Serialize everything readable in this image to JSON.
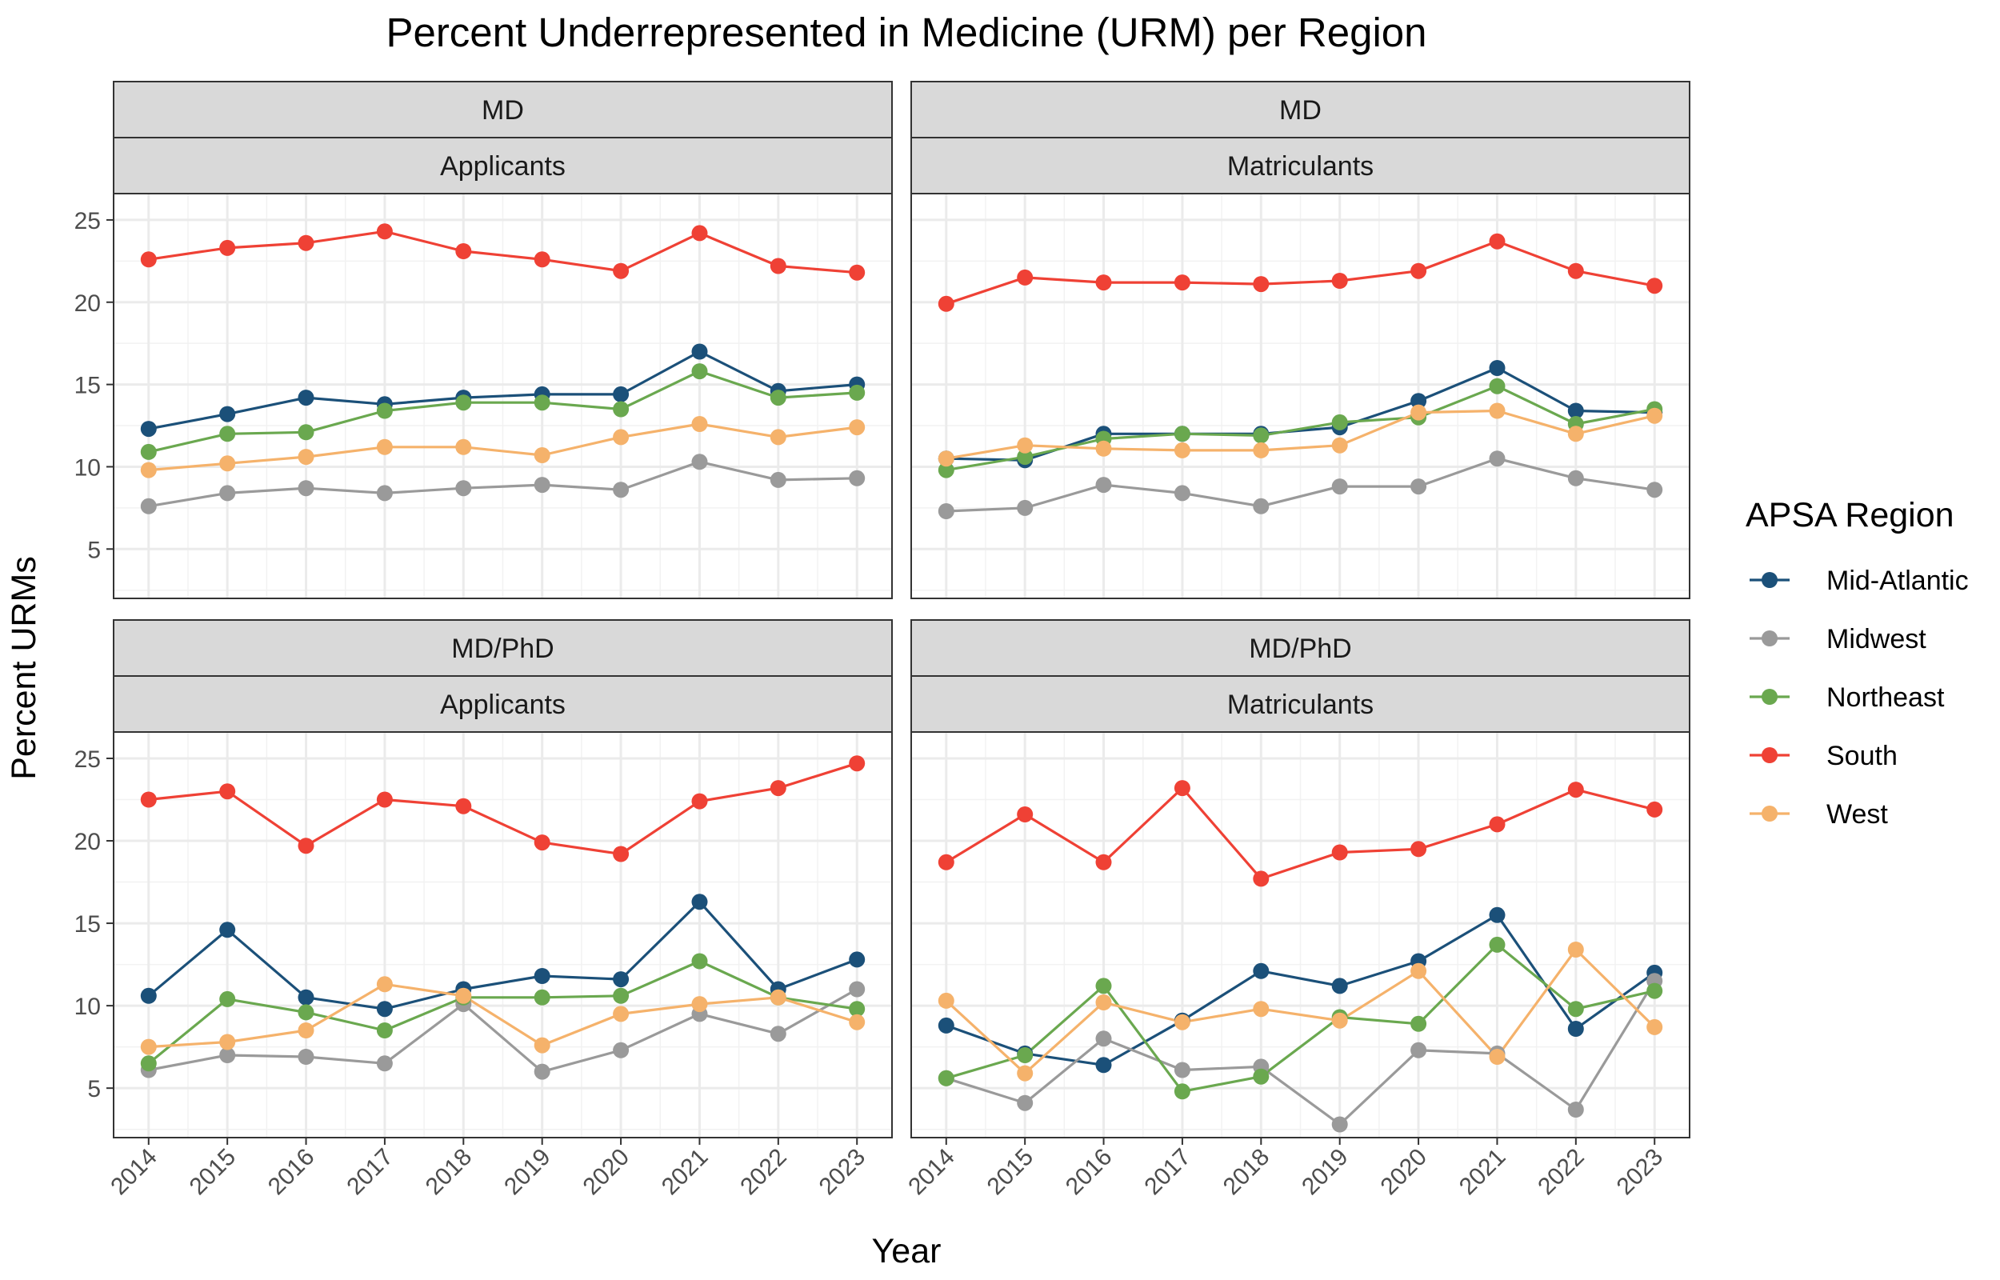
{
  "chart_data": {
    "type": "line",
    "title": "Percent Underrepresented in Medicine (URM) per Region",
    "xlabel": "Year",
    "ylabel": "Percent URMs",
    "x": [
      "2014",
      "2015",
      "2016",
      "2017",
      "2018",
      "2019",
      "2020",
      "2021",
      "2022",
      "2023"
    ],
    "ylim": [
      2.0,
      26.6
    ],
    "yticks": [
      "5",
      "10",
      "15",
      "20",
      "25"
    ],
    "grid": true,
    "legend": {
      "title": "APSA Region",
      "position": "right",
      "entries": [
        "Mid-Atlantic",
        "Midwest",
        "Northeast",
        "South",
        "West"
      ]
    },
    "colors": {
      "Mid-Atlantic": "#1b5079",
      "Midwest": "#9a9a9a",
      "Northeast": "#6aa84f",
      "South": "#ef4135",
      "West": "#f5b26b"
    },
    "panels": [
      {
        "strip_top": "MD",
        "strip_bottom": "Applicants",
        "series": [
          {
            "name": "Mid-Atlantic",
            "values": [
              12.3,
              13.2,
              14.2,
              13.8,
              14.2,
              14.4,
              14.4,
              17.0,
              14.6,
              15.0
            ]
          },
          {
            "name": "Midwest",
            "values": [
              7.6,
              8.4,
              8.7,
              8.4,
              8.7,
              8.9,
              8.6,
              10.3,
              9.2,
              9.3
            ]
          },
          {
            "name": "Northeast",
            "values": [
              10.9,
              12.0,
              12.1,
              13.4,
              13.9,
              13.9,
              13.5,
              15.8,
              14.2,
              14.5
            ]
          },
          {
            "name": "South",
            "values": [
              22.6,
              23.3,
              23.6,
              24.3,
              23.1,
              22.6,
              21.9,
              24.2,
              22.2,
              21.8
            ]
          },
          {
            "name": "West",
            "values": [
              9.8,
              10.2,
              10.6,
              11.2,
              11.2,
              10.7,
              11.8,
              12.6,
              11.8,
              12.4
            ]
          }
        ]
      },
      {
        "strip_top": "MD",
        "strip_bottom": "Matriculants",
        "series": [
          {
            "name": "Mid-Atlantic",
            "values": [
              10.5,
              10.4,
              12.0,
              12.0,
              12.0,
              12.4,
              14.0,
              16.0,
              13.4,
              13.3
            ]
          },
          {
            "name": "Midwest",
            "values": [
              7.3,
              7.5,
              8.9,
              8.4,
              7.6,
              8.8,
              8.8,
              10.5,
              9.3,
              8.6
            ]
          },
          {
            "name": "Northeast",
            "values": [
              9.8,
              10.6,
              11.7,
              12.0,
              11.9,
              12.7,
              13.0,
              14.9,
              12.6,
              13.5
            ]
          },
          {
            "name": "South",
            "values": [
              19.9,
              21.5,
              21.2,
              21.2,
              21.1,
              21.3,
              21.9,
              23.7,
              21.9,
              21.0
            ]
          },
          {
            "name": "West",
            "values": [
              10.5,
              11.3,
              11.1,
              11.0,
              11.0,
              11.3,
              13.3,
              13.4,
              12.0,
              13.1
            ]
          }
        ]
      },
      {
        "strip_top": "MD/PhD",
        "strip_bottom": "Applicants",
        "series": [
          {
            "name": "Mid-Atlantic",
            "values": [
              10.6,
              14.6,
              10.5,
              9.8,
              11.0,
              11.8,
              11.6,
              16.3,
              11.0,
              12.8
            ]
          },
          {
            "name": "Midwest",
            "values": [
              6.1,
              7.0,
              6.9,
              6.5,
              10.1,
              6.0,
              7.3,
              9.5,
              8.3,
              11.0
            ]
          },
          {
            "name": "Northeast",
            "values": [
              6.5,
              10.4,
              9.6,
              8.5,
              10.5,
              10.5,
              10.6,
              12.7,
              10.5,
              9.8
            ]
          },
          {
            "name": "South",
            "values": [
              22.5,
              23.0,
              19.7,
              22.5,
              22.1,
              19.9,
              19.2,
              22.4,
              23.2,
              24.7
            ]
          },
          {
            "name": "West",
            "values": [
              7.5,
              7.8,
              8.5,
              11.3,
              10.6,
              7.6,
              9.5,
              10.1,
              10.5,
              9.0
            ]
          }
        ]
      },
      {
        "strip_top": "MD/PhD",
        "strip_bottom": "Matriculants",
        "series": [
          {
            "name": "Mid-Atlantic",
            "values": [
              8.8,
              7.1,
              6.4,
              9.1,
              12.1,
              11.2,
              12.7,
              15.5,
              8.6,
              12.0
            ]
          },
          {
            "name": "Midwest",
            "values": [
              5.6,
              4.1,
              8.0,
              6.1,
              6.3,
              2.8,
              7.3,
              7.1,
              3.7,
              11.5
            ]
          },
          {
            "name": "Northeast",
            "values": [
              5.6,
              7.0,
              11.2,
              4.8,
              5.7,
              9.3,
              8.9,
              13.7,
              9.8,
              10.9
            ]
          },
          {
            "name": "South",
            "values": [
              18.7,
              21.6,
              18.7,
              23.2,
              17.7,
              19.3,
              19.5,
              21.0,
              23.1,
              21.9
            ]
          },
          {
            "name": "West",
            "values": [
              10.3,
              5.9,
              10.2,
              9.0,
              9.8,
              9.1,
              12.1,
              6.9,
              13.4,
              8.7
            ]
          }
        ]
      }
    ]
  }
}
